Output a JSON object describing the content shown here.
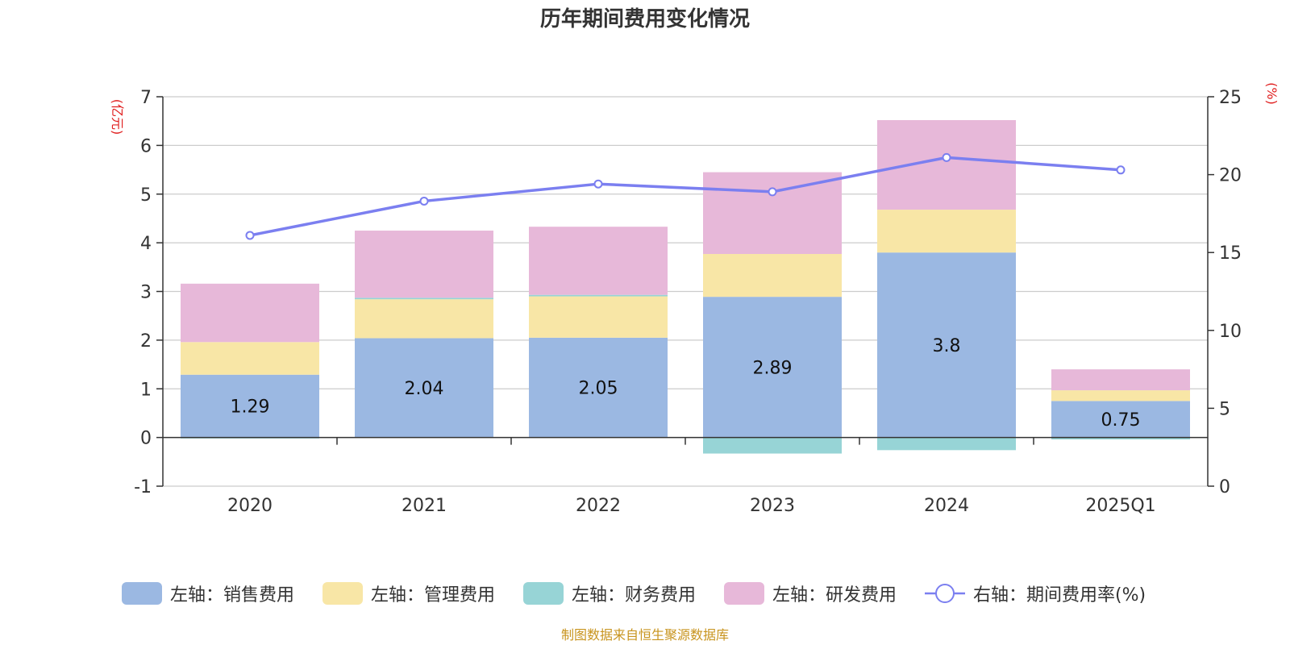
{
  "chart_data": {
    "type": "bar",
    "stacked": true,
    "title": "历年期间费用变化情况",
    "categories": [
      "2020",
      "2021",
      "2022",
      "2023",
      "2024",
      "2025Q1"
    ],
    "left_axis": {
      "unit": "(亿元)",
      "ylim": [
        -1,
        7
      ],
      "ticks": [
        "-1",
        "0",
        "1",
        "2",
        "3",
        "4",
        "5",
        "6",
        "7"
      ]
    },
    "right_axis": {
      "unit": "(%)",
      "ylim": [
        0,
        25
      ],
      "ticks": [
        "0",
        "5",
        "10",
        "15",
        "20",
        "25"
      ]
    },
    "series": [
      {
        "name": "左轴：销售费用",
        "axis": "left",
        "color": "#9bb8e2",
        "values": [
          1.29,
          2.04,
          2.05,
          2.89,
          3.8,
          0.75
        ],
        "labels": [
          "1.29",
          "2.04",
          "2.05",
          "2.89",
          "3.8",
          "0.75"
        ]
      },
      {
        "name": "左轴：管理费用",
        "axis": "left",
        "color": "#f8e6a6",
        "values": [
          0.67,
          0.8,
          0.85,
          0.88,
          0.88,
          0.22
        ]
      },
      {
        "name": "左轴：财务费用",
        "axis": "left",
        "color": "#97d4d6",
        "values": [
          -0.02,
          0.03,
          0.03,
          -0.33,
          -0.26,
          -0.04
        ]
      },
      {
        "name": "左轴：研发费用",
        "axis": "left",
        "color": "#e7b8d9",
        "values": [
          1.2,
          1.38,
          1.4,
          1.68,
          1.84,
          0.43
        ]
      },
      {
        "name": "右轴：期间费用率(%)",
        "axis": "right",
        "type": "line",
        "color": "#7b7ff0",
        "values": [
          16.1,
          18.3,
          19.4,
          18.9,
          21.1,
          20.3
        ]
      }
    ],
    "source": "制图数据来自恒生聚源数据库"
  },
  "colors": {
    "axis_unit": "#e02020",
    "source": "#c8941e",
    "grid": "#cccccc"
  }
}
